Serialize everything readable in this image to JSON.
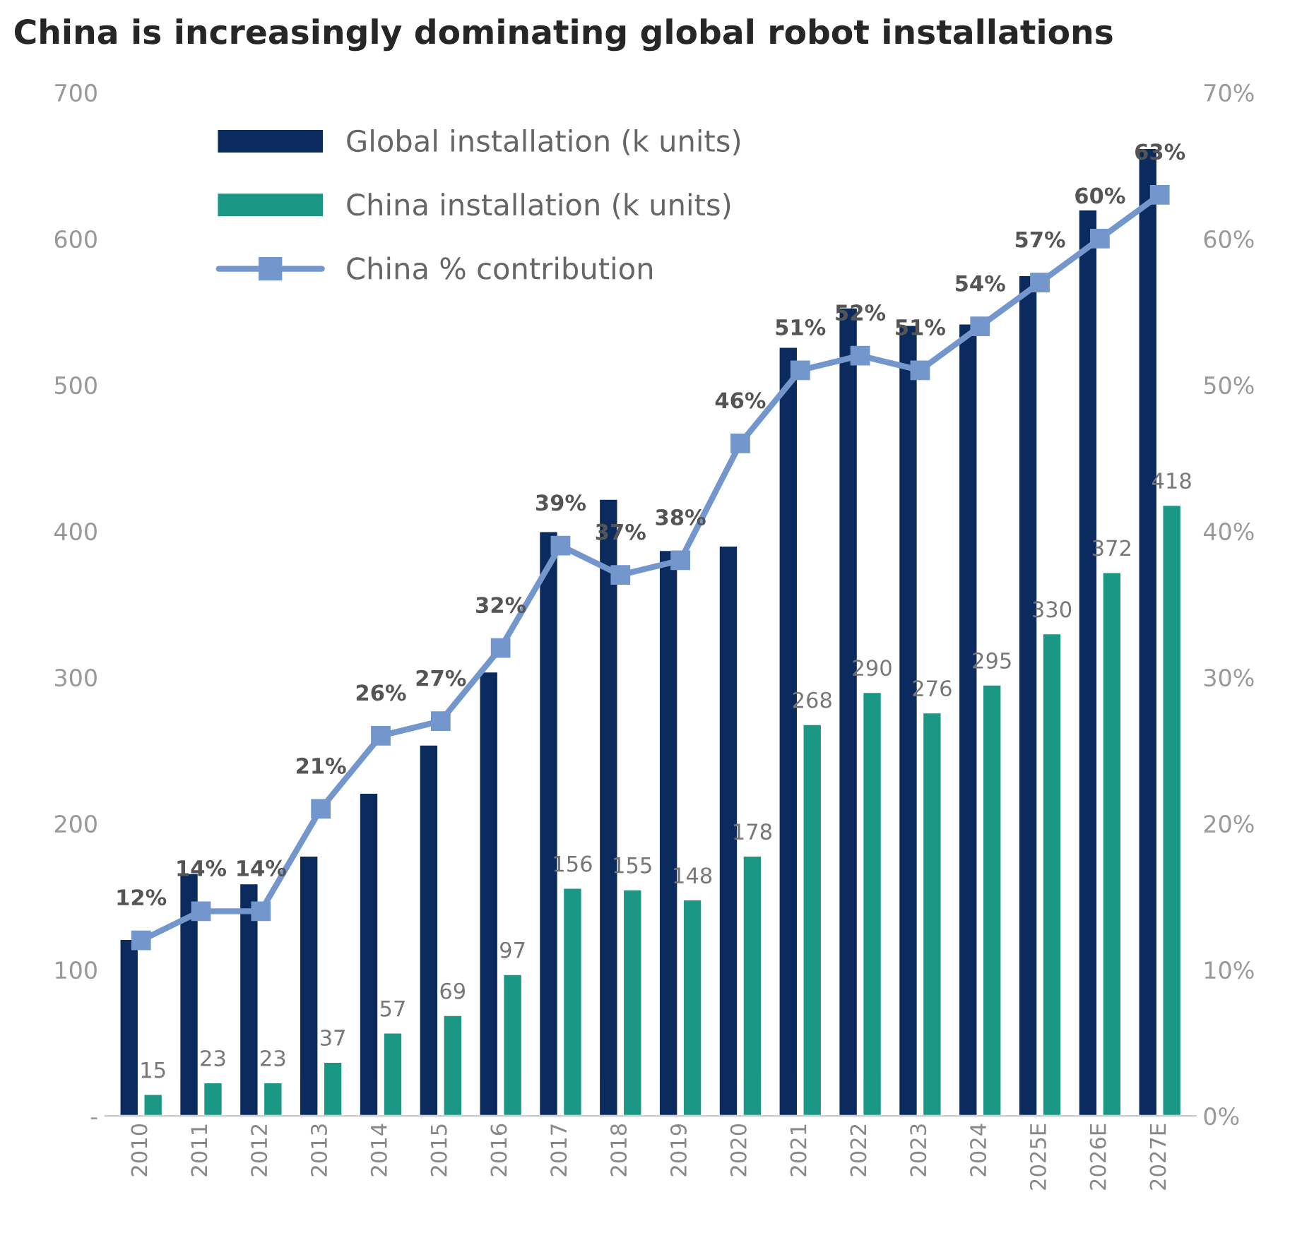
{
  "chart_data": {
    "type": "bar",
    "title": "China is increasingly dominating global robot installations",
    "categories": [
      "2010",
      "2011",
      "2012",
      "2013",
      "2014",
      "2015",
      "2016",
      "2017",
      "2018",
      "2019",
      "2020",
      "2021",
      "2022",
      "2023",
      "2024",
      "2025E",
      "2026E",
      "2027E"
    ],
    "series": [
      {
        "name": "Global installation (k units)",
        "color": "#0b2a5e",
        "values": [
          121,
          166,
          159,
          178,
          221,
          254,
          304,
          400,
          422,
          387,
          390,
          526,
          553,
          541,
          542,
          575,
          620,
          662
        ]
      },
      {
        "name": "China installation (k units)",
        "color": "#1a9885",
        "values": [
          15,
          23,
          23,
          37,
          57,
          69,
          97,
          156,
          155,
          148,
          178,
          268,
          290,
          276,
          295,
          330,
          372,
          418
        ],
        "value_labels": [
          "15",
          "23",
          "23",
          "37",
          "57",
          "69",
          "97",
          "156",
          "155",
          "148",
          "178",
          "268",
          "290",
          "276",
          "295",
          "330",
          "372",
          "418"
        ]
      },
      {
        "name": "China % contribution",
        "type": "line",
        "axis": "y2",
        "color": "#7397cc",
        "marker": "square",
        "line_style": "solid",
        "values": [
          12,
          14,
          14,
          21,
          26,
          27,
          32,
          39,
          37,
          38,
          46,
          51,
          52,
          51,
          54,
          57,
          60,
          63
        ],
        "value_labels": [
          "12%",
          "14%",
          "14%",
          "21%",
          "26%",
          "27%",
          "32%",
          "39%",
          "37%",
          "38%",
          "46%",
          "51%",
          "52%",
          "51%",
          "54%",
          "57%",
          "60%",
          "63%"
        ]
      }
    ],
    "ylim": [
      0,
      700
    ],
    "yticks": [
      {
        "value": 0,
        "label": "-"
      },
      100,
      200,
      300,
      400,
      500,
      600,
      700
    ],
    "y2lim": [
      0,
      70
    ],
    "y2ticks": [
      {
        "value": 0,
        "label": "0%"
      },
      {
        "value": 10,
        "label": "10%"
      },
      {
        "value": 20,
        "label": "20%"
      },
      {
        "value": 30,
        "label": "30%"
      },
      {
        "value": 40,
        "label": "40%"
      },
      {
        "value": 50,
        "label": "50%"
      },
      {
        "value": 60,
        "label": "60%"
      },
      {
        "value": 70,
        "label": "70%"
      }
    ],
    "grid": false,
    "legend": "top left"
  }
}
